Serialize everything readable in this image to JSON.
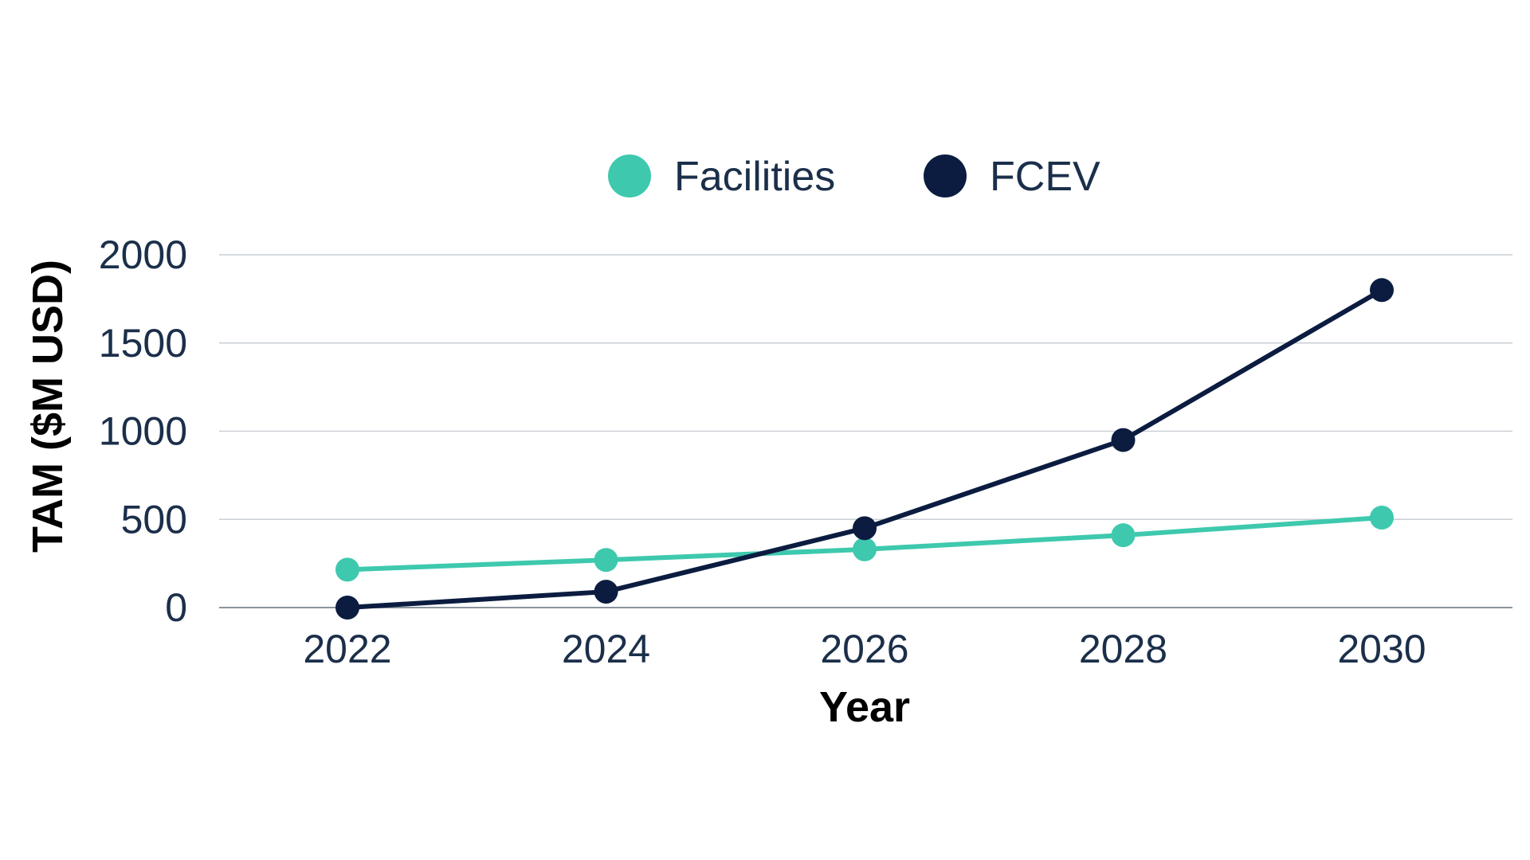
{
  "chart_data": {
    "type": "line",
    "title": "",
    "xlabel": "Year",
    "ylabel": "TAM ($M USD)",
    "x": [
      "2022",
      "2024",
      "2026",
      "2028",
      "2030"
    ],
    "ylim": [
      0,
      2000
    ],
    "yticks": [
      "0",
      "500",
      "1000",
      "1500",
      "2000"
    ],
    "grid": true,
    "legend_position": "top-center",
    "series": [
      {
        "name": "Facilities",
        "color": "#3ec9ae",
        "values": [
          215,
          270,
          330,
          410,
          510
        ]
      },
      {
        "name": "FCEV",
        "color": "#0b1c40",
        "values": [
          0,
          90,
          450,
          950,
          1800
        ]
      }
    ]
  }
}
